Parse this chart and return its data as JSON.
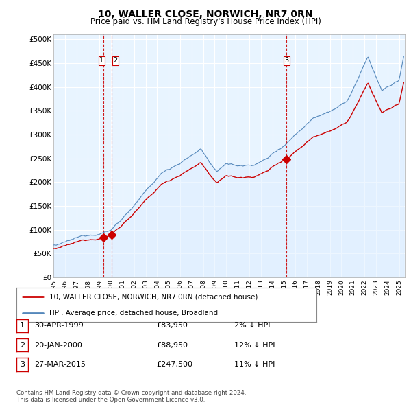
{
  "title": "10, WALLER CLOSE, NORWICH, NR7 0RN",
  "subtitle": "Price paid vs. HM Land Registry's House Price Index (HPI)",
  "ylabel_ticks": [
    "£0",
    "£50K",
    "£100K",
    "£150K",
    "£200K",
    "£250K",
    "£300K",
    "£350K",
    "£400K",
    "£450K",
    "£500K"
  ],
  "ytick_values": [
    0,
    50000,
    100000,
    150000,
    200000,
    250000,
    300000,
    350000,
    400000,
    450000,
    500000
  ],
  "ylim": [
    0,
    510000
  ],
  "xlim_start": 1995.0,
  "xlim_end": 2025.5,
  "xtick_years": [
    1995,
    1996,
    1997,
    1998,
    1999,
    2000,
    2001,
    2002,
    2003,
    2004,
    2005,
    2006,
    2007,
    2008,
    2009,
    2010,
    2011,
    2012,
    2013,
    2014,
    2015,
    2016,
    2017,
    2018,
    2019,
    2020,
    2021,
    2022,
    2023,
    2024,
    2025
  ],
  "sale_dates": [
    1999.33,
    2000.05,
    2015.23
  ],
  "sale_prices": [
    83950,
    88950,
    247500
  ],
  "sale_labels": [
    "1",
    "2",
    "3"
  ],
  "vline_color": "#cc0000",
  "sale_dot_color": "#cc0000",
  "hpi_line_color": "#5588bb",
  "hpi_fill_color": "#ddeeff",
  "price_line_color": "#cc0000",
  "grid_color": "#cccccc",
  "legend_line1": "10, WALLER CLOSE, NORWICH, NR7 0RN (detached house)",
  "legend_line2": "HPI: Average price, detached house, Broadland",
  "table_rows": [
    {
      "num": "1",
      "date": "30-APR-1999",
      "price": "£83,950",
      "pct": "2% ↓ HPI"
    },
    {
      "num": "2",
      "date": "20-JAN-2000",
      "price": "£88,950",
      "pct": "12% ↓ HPI"
    },
    {
      "num": "3",
      "date": "27-MAR-2015",
      "price": "£247,500",
      "pct": "11% ↓ HPI"
    }
  ],
  "footnote": "Contains HM Land Registry data © Crown copyright and database right 2024.\nThis data is licensed under the Open Government Licence v3.0.",
  "background_color": "#ffffff",
  "plot_bg_color": "#ffffff"
}
